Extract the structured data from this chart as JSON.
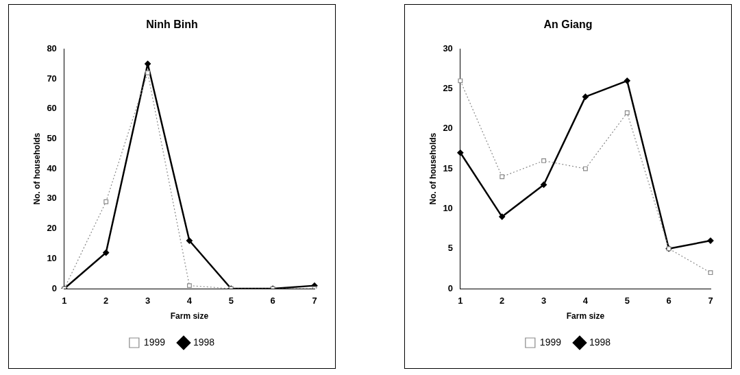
{
  "chart_data": [
    {
      "type": "line",
      "title": "Ninh Binh",
      "xlabel": "Farm size",
      "ylabel": "No. of households",
      "categories": [
        "1",
        "2",
        "3",
        "4",
        "5",
        "6",
        "7"
      ],
      "series": [
        {
          "name": "1998",
          "color": "#000000",
          "values": [
            0,
            12,
            75,
            16,
            0,
            0,
            1
          ],
          "marker": "diamond",
          "line_style": "solid"
        },
        {
          "name": "1999",
          "color": "#888888",
          "values": [
            0,
            29,
            72,
            1,
            0,
            0,
            0
          ],
          "marker": "square",
          "line_style": "dotted"
        }
      ],
      "ylim": [
        0,
        80
      ],
      "yticks": [
        0,
        10,
        20,
        30,
        40,
        50,
        60,
        70,
        80
      ],
      "grid": false,
      "legend": "bottom"
    },
    {
      "type": "line",
      "title": "An Giang",
      "xlabel": "Farm size",
      "ylabel": "No. of households",
      "categories": [
        "1",
        "2",
        "3",
        "4",
        "5",
        "6",
        "7"
      ],
      "series": [
        {
          "name": "1998",
          "color": "#000000",
          "values": [
            17,
            9,
            13,
            24,
            26,
            5,
            6
          ],
          "marker": "diamond",
          "line_style": "solid"
        },
        {
          "name": "1999",
          "color": "#888888",
          "values": [
            26,
            14,
            16,
            15,
            22,
            5,
            2
          ],
          "marker": "square",
          "line_style": "dotted"
        }
      ],
      "ylim": [
        0,
        30
      ],
      "yticks": [
        0,
        5,
        10,
        15,
        20,
        25,
        30
      ],
      "grid": false,
      "legend": "bottom"
    }
  ]
}
